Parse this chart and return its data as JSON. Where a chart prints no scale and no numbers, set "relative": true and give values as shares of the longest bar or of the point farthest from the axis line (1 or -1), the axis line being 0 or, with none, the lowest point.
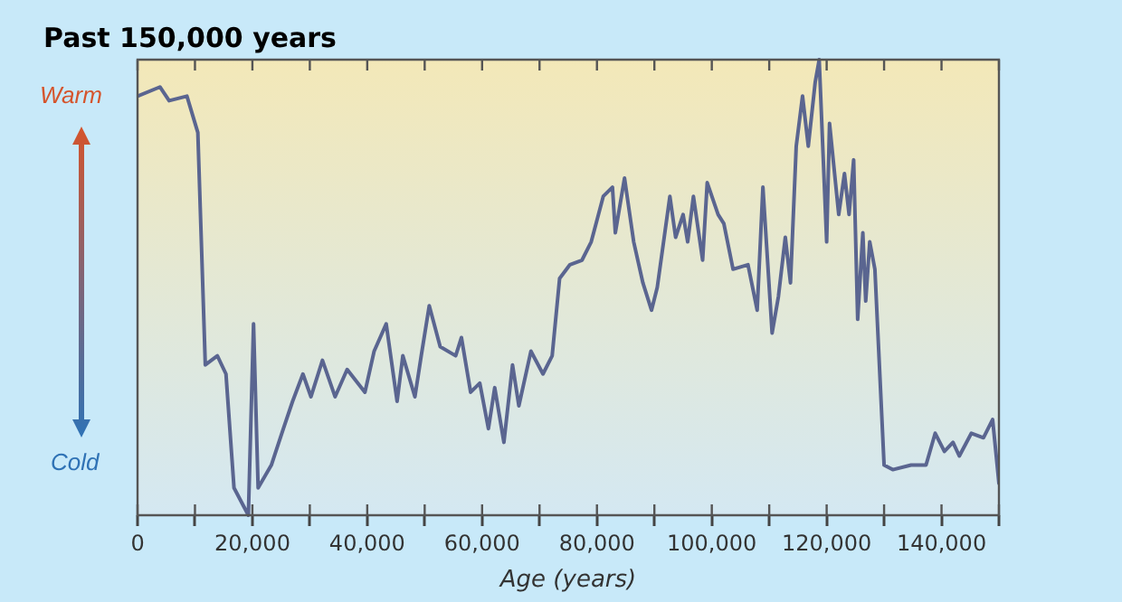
{
  "chart_data": {
    "type": "line",
    "title": "Past 150,000 years",
    "xlabel": "Age (years)",
    "relative": true,
    "grid": false,
    "legend": false,
    "marker": "none",
    "annotations": [
      "Warm",
      "Cold"
    ],
    "xlim": [
      0,
      150000
    ],
    "xticks": [
      0,
      {
        "value": 10000,
        "label": null
      },
      {
        "value": 20000,
        "label": "20,000"
      },
      {
        "value": 30000,
        "label": null
      },
      {
        "value": 40000,
        "label": "40,000"
      },
      {
        "value": 50000,
        "label": null
      },
      {
        "value": 60000,
        "label": "60,000"
      },
      {
        "value": 70000,
        "label": null
      },
      {
        "value": 80000,
        "label": "80,000"
      },
      {
        "value": 90000,
        "label": null
      },
      {
        "value": 100000,
        "label": "100,000"
      },
      {
        "value": 110000,
        "label": null
      },
      {
        "value": 120000,
        "label": "120,000"
      },
      {
        "value": 130000,
        "label": null
      },
      {
        "value": 140000,
        "label": "140,000"
      },
      {
        "value": 150000,
        "label": null
      }
    ],
    "x": [
      0,
      3900,
      5500,
      8600,
      10500,
      11800,
      13900,
      15400,
      16800,
      19300,
      20200,
      21000,
      23300,
      25400,
      27000,
      28800,
      30200,
      32200,
      34400,
      36500,
      39600,
      41200,
      43300,
      45200,
      46200,
      48300,
      49400,
      50800,
      52700,
      55400,
      56400,
      58000,
      59600,
      61100,
      62200,
      63800,
      65300,
      66400,
      68500,
      70600,
      72200,
      73500,
      75300,
      77400,
      79000,
      81100,
      82700,
      83200,
      84800,
      86400,
      88000,
      89500,
      90500,
      92700,
      93700,
      95000,
      95800,
      96800,
      98400,
      99200,
      101100,
      102100,
      103700,
      106300,
      107900,
      108900,
      110500,
      111600,
      112800,
      113700,
      114700,
      115800,
      116800,
      118000,
      118700,
      120000,
      120500,
      122100,
      123100,
      123900,
      124700,
      125400,
      126300,
      126800,
      127500,
      128400,
      130000,
      131500,
      134700,
      137300,
      138900,
      140500,
      142000,
      143100,
      145200,
      147300,
      148900,
      150000
    ],
    "values": [
      0.92,
      0.94,
      0.91,
      0.92,
      0.84,
      0.33,
      0.35,
      0.31,
      0.06,
      0,
      0.42,
      0.06,
      0.11,
      0.19,
      0.25,
      0.31,
      0.26,
      0.34,
      0.26,
      0.32,
      0.27,
      0.36,
      0.42,
      0.25,
      0.35,
      0.26,
      0.35,
      0.46,
      0.37,
      0.35,
      0.39,
      0.27,
      0.29,
      0.19,
      0.28,
      0.16,
      0.33,
      0.24,
      0.36,
      0.31,
      0.35,
      0.52,
      0.55,
      0.56,
      0.6,
      0.7,
      0.72,
      0.62,
      0.74,
      0.6,
      0.51,
      0.45,
      0.5,
      0.7,
      0.61,
      0.66,
      0.6,
      0.7,
      0.56,
      0.73,
      0.66,
      0.64,
      0.54,
      0.55,
      0.45,
      0.72,
      0.4,
      0.48,
      0.61,
      0.51,
      0.81,
      0.92,
      0.81,
      0.95,
      1,
      0.6,
      0.86,
      0.66,
      0.75,
      0.66,
      0.78,
      0.43,
      0.62,
      0.47,
      0.6,
      0.54,
      0.11,
      0.1,
      0.11,
      0.11,
      0.18,
      0.14,
      0.16,
      0.13,
      0.18,
      0.17,
      0.21,
      0.07
    ],
    "color": "#5a6590"
  }
}
